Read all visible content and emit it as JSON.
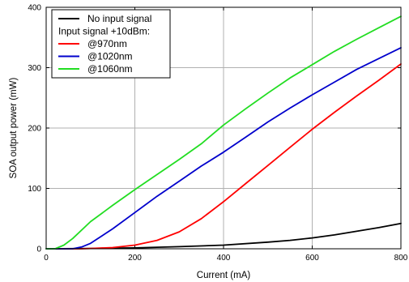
{
  "chart_data": {
    "type": "line",
    "title": "",
    "xlabel": "Current (mA)",
    "ylabel": "SOA output power (mW)",
    "xlim": [
      0,
      800
    ],
    "ylim": [
      0,
      400
    ],
    "x_ticks": [
      0,
      200,
      400,
      600,
      800
    ],
    "y_ticks": [
      0,
      100,
      200,
      300,
      400
    ],
    "grid": true,
    "legend_position": "top-left",
    "legend_heading": "Input signal +10dBm:",
    "series": [
      {
        "name": "No input signal",
        "color": "#000000",
        "x": [
          0,
          100,
          200,
          300,
          400,
          500,
          550,
          600,
          650,
          700,
          750,
          800
        ],
        "y": [
          0,
          0.5,
          1.5,
          3.5,
          6,
          11,
          14,
          18,
          23,
          29,
          35,
          42
        ]
      },
      {
        "name": "@970nm",
        "color": "#ff0000",
        "x": [
          0,
          80,
          100,
          150,
          200,
          250,
          300,
          350,
          400,
          450,
          500,
          550,
          600,
          650,
          700,
          750,
          800
        ],
        "y": [
          0,
          0,
          0.5,
          2,
          6,
          14,
          28,
          50,
          78,
          108,
          138,
          168,
          198,
          226,
          253,
          279,
          306
        ]
      },
      {
        "name": "@1020nm",
        "color": "#0000cc",
        "x": [
          0,
          60,
          80,
          100,
          150,
          200,
          250,
          300,
          350,
          400,
          450,
          500,
          550,
          600,
          650,
          700,
          750,
          800
        ],
        "y": [
          0,
          0,
          3,
          9,
          33,
          60,
          87,
          112,
          137,
          160,
          185,
          210,
          233,
          255,
          276,
          297,
          315,
          333
        ]
      },
      {
        "name": "@1060nm",
        "color": "#22dd22",
        "x": [
          0,
          20,
          40,
          60,
          100,
          150,
          200,
          250,
          300,
          350,
          400,
          450,
          500,
          550,
          600,
          650,
          700,
          750,
          800
        ],
        "y": [
          0,
          0,
          6,
          17,
          45,
          72,
          98,
          123,
          148,
          174,
          205,
          232,
          258,
          283,
          305,
          327,
          347,
          366,
          385
        ]
      }
    ]
  }
}
